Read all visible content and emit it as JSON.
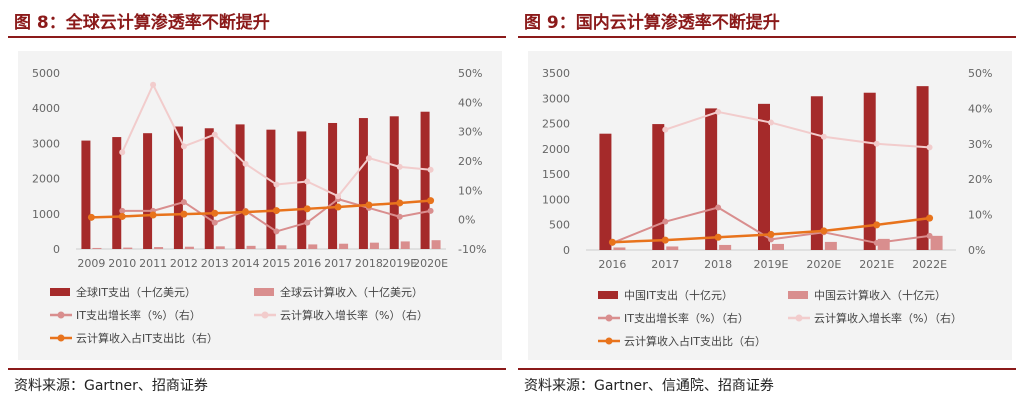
{
  "left": {
    "title": "图 8：全球云计算渗透率不断提升",
    "source": "资料来源：Gartner、招商证券"
  },
  "right": {
    "title": "图 9：国内云计算渗透率不断提升",
    "source": "资料来源：Gartner、信通院、招商证券"
  },
  "colors": {
    "accent": "#8b1a1a",
    "series_dark_bar": "#a52a2a",
    "series_light_bar": "#d98e8e",
    "series_it_growth": "#d98e8e",
    "series_cloud_growth": "#f2cccc",
    "series_share": "#e8731c"
  },
  "chart_data": [
    {
      "type": "bar",
      "categories": [
        "2009",
        "2010",
        "2011",
        "2012",
        "2013",
        "2014",
        "2015",
        "2016",
        "2017",
        "2018",
        "2019E",
        "2020E"
      ],
      "y_left": {
        "ticks": [
          "0",
          "1000",
          "2000",
          "3000",
          "4000",
          "5000"
        ],
        "min": 0,
        "max": 5000
      },
      "y_right": {
        "ticks": [
          "-10%",
          "0%",
          "10%",
          "20%",
          "30%",
          "40%",
          "50%"
        ],
        "min": -10,
        "max": 50
      },
      "legend_placement": "bottom",
      "grid": false,
      "series": [
        {
          "name": "全球IT支出（十亿美元）",
          "type": "bar",
          "axis": "left",
          "color": "#a52a2a",
          "values": [
            3080,
            3180,
            3290,
            3480,
            3430,
            3540,
            3390,
            3340,
            3580,
            3720,
            3770,
            3900
          ]
        },
        {
          "name": "全球云计算收入（十亿美元）",
          "type": "bar",
          "axis": "left",
          "color": "#d98e8e",
          "values": [
            30,
            40,
            55,
            65,
            75,
            90,
            105,
            130,
            150,
            180,
            215,
            250
          ]
        },
        {
          "name": "IT支出增长率（%）（右）",
          "type": "line",
          "axis": "right",
          "color": "#d98e8e",
          "values": [
            null,
            3,
            3,
            6,
            -1,
            3,
            -4,
            -1,
            7,
            4,
            1,
            3
          ]
        },
        {
          "name": "云计算收入增长率（%）（右）",
          "type": "line",
          "axis": "right",
          "color": "#f2cccc",
          "values": [
            null,
            23,
            46,
            25,
            29,
            19,
            12,
            13,
            8,
            21,
            18,
            17
          ]
        },
        {
          "name": "云计算收入占IT支出比（右）",
          "type": "line",
          "axis": "right",
          "color": "#e8731c",
          "values": [
            0.8,
            1.1,
            1.6,
            1.9,
            2.2,
            2.6,
            3.1,
            3.7,
            4.3,
            5.0,
            5.7,
            6.5
          ]
        }
      ]
    },
    {
      "type": "bar",
      "categories": [
        "2016",
        "2017",
        "2018",
        "2019E",
        "2020E",
        "2021E",
        "2022E"
      ],
      "y_left": {
        "ticks": [
          "0",
          "500",
          "1000",
          "1500",
          "2000",
          "2500",
          "3000",
          "3500"
        ],
        "min": 0,
        "max": 3500
      },
      "y_right": {
        "ticks": [
          "0%",
          "10%",
          "20%",
          "30%",
          "40%",
          "50%"
        ],
        "min": 0,
        "max": 50
      },
      "legend_placement": "bottom",
      "grid": false,
      "series": [
        {
          "name": "中国IT支出（十亿元）",
          "type": "bar",
          "axis": "left",
          "color": "#a52a2a",
          "values": [
            2300,
            2490,
            2800,
            2890,
            3040,
            3110,
            3240
          ]
        },
        {
          "name": "中国云计算收入（十亿元）",
          "type": "bar",
          "axis": "left",
          "color": "#d98e8e",
          "values": [
            50,
            70,
            100,
            120,
            160,
            220,
            280
          ]
        },
        {
          "name": "IT支出增长率（%）（右）",
          "type": "line",
          "axis": "right",
          "color": "#d98e8e",
          "values": [
            2,
            8,
            12,
            3,
            5,
            2,
            4
          ]
        },
        {
          "name": "云计算收入增长率（%）（右）",
          "type": "line",
          "axis": "right",
          "color": "#f2cccc",
          "values": [
            null,
            34,
            39,
            36,
            32,
            30,
            29
          ]
        },
        {
          "name": "云计算收入占IT支出比（右）",
          "type": "line",
          "axis": "right",
          "color": "#e8731c",
          "values": [
            2.2,
            2.8,
            3.6,
            4.4,
            5.4,
            7.1,
            9.0
          ]
        }
      ]
    }
  ]
}
